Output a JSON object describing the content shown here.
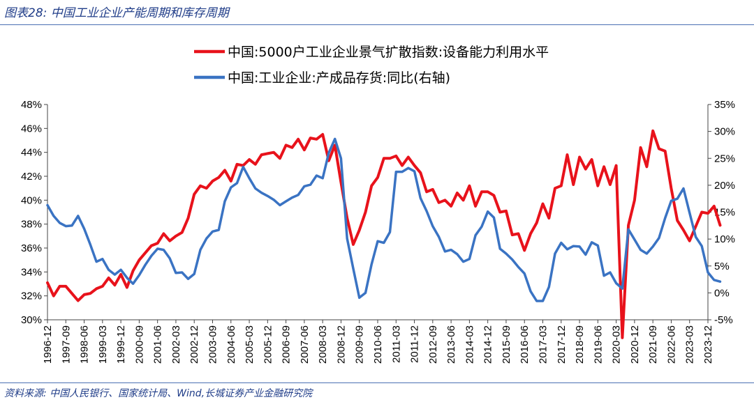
{
  "figure": {
    "title": "图表28:  中国工业企业产能周期和库存周期",
    "source": "资料来源:  中国人民银行、国家统计局、Wind,长城证券产业金融研究院"
  },
  "chart_data": {
    "type": "line",
    "legend_position": "top-center",
    "grid": false,
    "x_tick_labels": [
      "1996-12",
      "1997-09",
      "1998-06",
      "1999-03",
      "1999-12",
      "2000-09",
      "2001-06",
      "2002-03",
      "2002-12",
      "2003-09",
      "2004-06",
      "2005-03",
      "2005-12",
      "2006-09",
      "2007-06",
      "2008-03",
      "2008-12",
      "2009-09",
      "2010-06",
      "2011-03",
      "2011-12",
      "2012-09",
      "2013-06",
      "2014-03",
      "2014-12",
      "2015-09",
      "2016-06",
      "2017-03",
      "2017-12",
      "2018-09",
      "2019-06",
      "2020-03",
      "2020-12",
      "2021-09",
      "2022-06",
      "2023-03",
      "2023-12"
    ],
    "y_left": {
      "min": 30,
      "max": 48,
      "step": 2,
      "unit": "%"
    },
    "y_right": {
      "min": -5,
      "max": 35,
      "step": 5,
      "unit": "%"
    },
    "x_range": [
      0,
      108
    ],
    "series": [
      {
        "name": "中国:5000户工业企业景气扩散指数:设备能力利用水平",
        "color": "#e8121b",
        "axis": "left",
        "points": [
          [
            0,
            33.1
          ],
          [
            1,
            32.0
          ],
          [
            2,
            32.8
          ],
          [
            3,
            32.8
          ],
          [
            4,
            32.2
          ],
          [
            5,
            31.6
          ],
          [
            6,
            32.1
          ],
          [
            7,
            32.2
          ],
          [
            8,
            32.6
          ],
          [
            9,
            32.8
          ],
          [
            10,
            33.5
          ],
          [
            11,
            32.9
          ],
          [
            12,
            33.8
          ],
          [
            13,
            32.7
          ],
          [
            14,
            34.1
          ],
          [
            15,
            35.0
          ],
          [
            16,
            35.6
          ],
          [
            17,
            36.2
          ],
          [
            18,
            36.4
          ],
          [
            19,
            37.2
          ],
          [
            20,
            36.6
          ],
          [
            21,
            37.0
          ],
          [
            22,
            37.3
          ],
          [
            23,
            38.5
          ],
          [
            24,
            40.5
          ],
          [
            25,
            41.2
          ],
          [
            26,
            41.0
          ],
          [
            27,
            41.6
          ],
          [
            28,
            41.9
          ],
          [
            29,
            42.5
          ],
          [
            30,
            41.6
          ],
          [
            31,
            43.0
          ],
          [
            32,
            42.9
          ],
          [
            33,
            43.4
          ],
          [
            34,
            43.0
          ],
          [
            35,
            43.8
          ],
          [
            36,
            43.9
          ],
          [
            37,
            44.0
          ],
          [
            38,
            43.5
          ],
          [
            39,
            44.6
          ],
          [
            40,
            44.4
          ],
          [
            41,
            45.1
          ],
          [
            42,
            44.2
          ],
          [
            43,
            45.2
          ],
          [
            44,
            45.1
          ],
          [
            45,
            45.5
          ],
          [
            46,
            43.3
          ],
          [
            47,
            44.6
          ],
          [
            48,
            41.5
          ],
          [
            49,
            38.5
          ],
          [
            50,
            36.3
          ],
          [
            51,
            37.5
          ],
          [
            52,
            39.0
          ],
          [
            53,
            41.2
          ],
          [
            54,
            41.9
          ],
          [
            55,
            43.5
          ],
          [
            56,
            43.5
          ],
          [
            57,
            43.7
          ],
          [
            58,
            42.9
          ],
          [
            59,
            43.6
          ],
          [
            60,
            42.9
          ],
          [
            61,
            42.3
          ],
          [
            62,
            40.7
          ],
          [
            63,
            40.9
          ],
          [
            64,
            39.8
          ],
          [
            65,
            40.0
          ],
          [
            66,
            39.5
          ],
          [
            67,
            40.6
          ],
          [
            68,
            40.0
          ],
          [
            69,
            41.2
          ],
          [
            70,
            39.5
          ],
          [
            71,
            40.7
          ],
          [
            72,
            40.7
          ],
          [
            73,
            40.4
          ],
          [
            74,
            39.0
          ],
          [
            75,
            39.1
          ],
          [
            76,
            37.1
          ],
          [
            77,
            37.2
          ],
          [
            78,
            35.8
          ],
          [
            79,
            37.2
          ],
          [
            80,
            38.1
          ],
          [
            81,
            39.7
          ],
          [
            82,
            38.5
          ],
          [
            83,
            41.0
          ],
          [
            84,
            41.2
          ],
          [
            85,
            43.8
          ],
          [
            86,
            41.3
          ],
          [
            87,
            43.6
          ],
          [
            88,
            42.6
          ],
          [
            89,
            43.4
          ],
          [
            90,
            41.2
          ],
          [
            91,
            42.8
          ],
          [
            92,
            41.3
          ],
          [
            93,
            42.9
          ],
          [
            94,
            28.5
          ],
          [
            95,
            37.9
          ],
          [
            96,
            40.0
          ],
          [
            97,
            44.4
          ],
          [
            98,
            42.8
          ],
          [
            99,
            45.8
          ],
          [
            100,
            44.3
          ],
          [
            101,
            44.1
          ],
          [
            102,
            41.0
          ],
          [
            103,
            38.3
          ],
          [
            104,
            37.5
          ],
          [
            105,
            36.6
          ],
          [
            106,
            37.8
          ],
          [
            107,
            39.0
          ],
          [
            108,
            38.9
          ],
          [
            109,
            39.5
          ],
          [
            110,
            37.9
          ]
        ]
      },
      {
        "name": "中国:工业企业:产成品存货:同比(右轴)",
        "color": "#3a73c3",
        "axis": "right",
        "points": [
          [
            0,
            16.3
          ],
          [
            1,
            14.3
          ],
          [
            2,
            13.0
          ],
          [
            3,
            12.4
          ],
          [
            4,
            12.5
          ],
          [
            5,
            14.3
          ],
          [
            6,
            11.9
          ],
          [
            7,
            9.0
          ],
          [
            8,
            5.8
          ],
          [
            9,
            6.3
          ],
          [
            10,
            4.3
          ],
          [
            11,
            3.4
          ],
          [
            12,
            4.3
          ],
          [
            13,
            2.8
          ],
          [
            14,
            1.7
          ],
          [
            15,
            3.3
          ],
          [
            16,
            5.2
          ],
          [
            17,
            6.9
          ],
          [
            18,
            8.2
          ],
          [
            19,
            8.0
          ],
          [
            20,
            6.4
          ],
          [
            21,
            3.7
          ],
          [
            22,
            3.8
          ],
          [
            23,
            2.6
          ],
          [
            24,
            3.5
          ],
          [
            25,
            8.0
          ],
          [
            26,
            10.1
          ],
          [
            27,
            11.4
          ],
          [
            28,
            11.7
          ],
          [
            29,
            17.0
          ],
          [
            30,
            19.6
          ],
          [
            31,
            20.4
          ],
          [
            32,
            23.4
          ],
          [
            33,
            21.3
          ],
          [
            34,
            19.4
          ],
          [
            35,
            18.6
          ],
          [
            36,
            18.0
          ],
          [
            37,
            17.3
          ],
          [
            38,
            16.3
          ],
          [
            39,
            17.0
          ],
          [
            40,
            17.7
          ],
          [
            41,
            18.2
          ],
          [
            42,
            19.8
          ],
          [
            43,
            20.1
          ],
          [
            44,
            21.8
          ],
          [
            45,
            21.3
          ],
          [
            46,
            26.0
          ],
          [
            47,
            28.6
          ],
          [
            48,
            25.0
          ],
          [
            49,
            10.1
          ],
          [
            50,
            4.5
          ],
          [
            51,
            -0.9
          ],
          [
            52,
            0.0
          ],
          [
            53,
            5.3
          ],
          [
            54,
            9.6
          ],
          [
            55,
            9.3
          ],
          [
            56,
            11.3
          ],
          [
            57,
            22.5
          ],
          [
            58,
            22.5
          ],
          [
            59,
            23.2
          ],
          [
            60,
            22.6
          ],
          [
            61,
            17.6
          ],
          [
            62,
            15.2
          ],
          [
            63,
            12.4
          ],
          [
            64,
            10.4
          ],
          [
            65,
            7.7
          ],
          [
            66,
            8.0
          ],
          [
            67,
            7.2
          ],
          [
            68,
            5.8
          ],
          [
            69,
            6.3
          ],
          [
            70,
            10.7
          ],
          [
            71,
            12.3
          ],
          [
            72,
            15.1
          ],
          [
            73,
            14.0
          ],
          [
            74,
            8.2
          ],
          [
            75,
            7.3
          ],
          [
            76,
            6.2
          ],
          [
            77,
            4.8
          ],
          [
            78,
            3.6
          ],
          [
            79,
            0.3
          ],
          [
            80,
            -1.5
          ],
          [
            81,
            -1.5
          ],
          [
            82,
            1.1
          ],
          [
            83,
            7.3
          ],
          [
            84,
            9.3
          ],
          [
            85,
            8.1
          ],
          [
            86,
            8.7
          ],
          [
            87,
            8.6
          ],
          [
            88,
            7.1
          ],
          [
            89,
            9.4
          ],
          [
            90,
            8.8
          ],
          [
            91,
            3.2
          ],
          [
            92,
            3.8
          ],
          [
            93,
            1.8
          ],
          [
            94,
            0.8
          ],
          [
            95,
            11.8
          ],
          [
            96,
            9.9
          ],
          [
            97,
            8.0
          ],
          [
            98,
            7.3
          ],
          [
            99,
            8.6
          ],
          [
            100,
            10.2
          ],
          [
            101,
            13.9
          ],
          [
            102,
            17.1
          ],
          [
            103,
            17.5
          ],
          [
            104,
            19.4
          ],
          [
            105,
            14.9
          ],
          [
            106,
            10.4
          ],
          [
            107,
            8.7
          ],
          [
            108,
            3.8
          ],
          [
            109,
            2.4
          ],
          [
            110,
            2.1
          ]
        ]
      }
    ]
  }
}
